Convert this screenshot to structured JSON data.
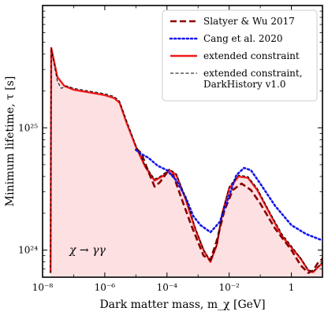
{
  "chart_data": {
    "type": "line",
    "title": "",
    "xlabel": "Dark matter mass, m_χ [GeV]",
    "ylabel": "Minimum lifetime, τ [s]",
    "xscale": "log",
    "yscale": "log",
    "xlim": [
      1e-08,
      10
    ],
    "ylim": [
      6e+23,
      1e+26
    ],
    "legend_position": "top-right",
    "annotation": "χ → γγ",
    "xticks": [
      {
        "value": 1e-08,
        "label": "10⁻⁸"
      },
      {
        "value": 1e-06,
        "label": "10⁻⁶"
      },
      {
        "value": 0.0001,
        "label": "10⁻⁴"
      },
      {
        "value": 0.01,
        "label": "10⁻²"
      },
      {
        "value": 1,
        "label": "1"
      }
    ],
    "yticks": [
      {
        "value": 1e+24,
        "label": "10²⁴"
      },
      {
        "value": 1e+25,
        "label": "10²⁵"
      }
    ],
    "series": [
      {
        "name": "Slatyer & Wu 2017",
        "color": "#8b0000",
        "style": "dashed",
        "points": [
          [
            1e-05,
            6.8e+24
          ],
          [
            1.5e-05,
            6.2e+24
          ],
          [
            2.5e-05,
            4.4e+24
          ],
          [
            4e-05,
            3.3e+24
          ],
          [
            6e-05,
            3.6e+24
          ],
          [
            0.0001,
            4.3e+24
          ],
          [
            0.00016,
            4.1e+24
          ],
          [
            0.0003,
            2.6e+24
          ],
          [
            0.0006,
            1.6e+24
          ],
          [
            0.0015,
            9e+23
          ],
          [
            0.0025,
            8.3e+23
          ],
          [
            0.004,
            1.2e+24
          ],
          [
            0.007,
            2.1e+24
          ],
          [
            0.013,
            3.1e+24
          ],
          [
            0.025,
            3.5e+24
          ],
          [
            0.05,
            3.1e+24
          ],
          [
            0.1,
            2.4e+24
          ],
          [
            0.3,
            1.5e+24
          ],
          [
            1,
            1e+24
          ],
          [
            2,
            7.5e+23
          ],
          [
            3.5,
            6.5e+23
          ],
          [
            5,
            6.8e+23
          ],
          [
            7,
            7.8e+23
          ],
          [
            10,
            8.5e+23
          ]
        ]
      },
      {
        "name": "Cang et al. 2020",
        "color": "#1515ee",
        "style": "dotted",
        "points": [
          [
            1e-05,
            6.6e+24
          ],
          [
            1.5e-05,
            6.1e+24
          ],
          [
            2.5e-05,
            5.7e+24
          ],
          [
            5e-05,
            4.9e+24
          ],
          [
            0.0001,
            4.5e+24
          ],
          [
            0.0002,
            3.7e+24
          ],
          [
            0.0004,
            2.7e+24
          ],
          [
            0.0007,
            1.9e+24
          ],
          [
            0.0012,
            1.6e+24
          ],
          [
            0.0025,
            1.4e+24
          ],
          [
            0.005,
            1.7e+24
          ],
          [
            0.01,
            2.8e+24
          ],
          [
            0.017,
            4.1e+24
          ],
          [
            0.03,
            4.7e+24
          ],
          [
            0.05,
            4.5e+24
          ],
          [
            0.1,
            3.5e+24
          ],
          [
            0.3,
            2.3e+24
          ],
          [
            1,
            1.6e+24
          ],
          [
            3,
            1.35e+24
          ],
          [
            10,
            1.2e+24
          ]
        ]
      },
      {
        "name": "extended constraint",
        "color": "#ee1a1a",
        "style": "solid",
        "points": [
          [
            1.8e-08,
            6.5e+23
          ],
          [
            1.9e-08,
            4.5e+25
          ],
          [
            2.4e-08,
            3.4e+25
          ],
          [
            3e-08,
            2.6e+25
          ],
          [
            5e-08,
            2.2e+25
          ],
          [
            1e-07,
            2.05e+25
          ],
          [
            3e-07,
            1.95e+25
          ],
          [
            1e-06,
            1.85e+25
          ],
          [
            2e-06,
            1.75e+25
          ],
          [
            3e-06,
            1.6e+25
          ],
          [
            5e-06,
            1.1e+25
          ],
          [
            1e-05,
            7e+24
          ],
          [
            2e-05,
            4.8e+24
          ],
          [
            4e-05,
            3.7e+24
          ],
          [
            7e-05,
            4e+24
          ],
          [
            0.00012,
            4.5e+24
          ],
          [
            0.0002,
            4.1e+24
          ],
          [
            0.0004,
            2.6e+24
          ],
          [
            0.0008,
            1.5e+24
          ],
          [
            0.0015,
            1e+24
          ],
          [
            0.0025,
            8e+23
          ],
          [
            0.004,
            1.1e+24
          ],
          [
            0.006,
            2e+24
          ],
          [
            0.01,
            3.2e+24
          ],
          [
            0.02,
            4e+24
          ],
          [
            0.04,
            3.9e+24
          ],
          [
            0.08,
            3.1e+24
          ],
          [
            0.2,
            2e+24
          ],
          [
            0.5,
            1.3e+24
          ],
          [
            1,
            1.05e+24
          ],
          [
            2,
            8.5e+23
          ],
          [
            3.5,
            6.8e+23
          ],
          [
            5,
            6.6e+23
          ],
          [
            7,
            7.2e+23
          ],
          [
            10,
            7.8e+23
          ]
        ]
      },
      {
        "name": "extended constraint,\nDarkHistory v1.0",
        "color": "#000000",
        "style": "dashed-thin",
        "points": [
          [
            1.8e-08,
            6.5e+23
          ],
          [
            1.9e-08,
            4.5e+25
          ],
          [
            2.4e-08,
            3.2e+25
          ],
          [
            3e-08,
            2.4e+25
          ],
          [
            4e-08,
            2.1e+25
          ],
          [
            6e-08,
            2.2e+25
          ],
          [
            1e-07,
            2.1e+25
          ],
          [
            3e-07,
            2e+25
          ],
          [
            1e-06,
            1.9e+25
          ],
          [
            2e-06,
            1.8e+25
          ],
          [
            3e-06,
            1.65e+25
          ],
          [
            5e-06,
            1.15e+25
          ],
          [
            1e-05,
            7.2e+24
          ],
          [
            2e-05,
            4.9e+24
          ],
          [
            4e-05,
            3.8e+24
          ],
          [
            7e-05,
            4.1e+24
          ],
          [
            0.00012,
            4.6e+24
          ],
          [
            0.0002,
            4.2e+24
          ],
          [
            0.0004,
            2.7e+24
          ],
          [
            0.0008,
            1.55e+24
          ],
          [
            0.0015,
            1e+24
          ],
          [
            0.0025,
            8.2e+23
          ],
          [
            0.004,
            1.1e+24
          ],
          [
            0.006,
            2e+24
          ],
          [
            0.01,
            3.3e+24
          ],
          [
            0.02,
            4.1e+24
          ],
          [
            0.04,
            4e+24
          ],
          [
            0.08,
            3.2e+24
          ],
          [
            0.2,
            2.05e+24
          ],
          [
            0.5,
            1.35e+24
          ],
          [
            1,
            1.08e+24
          ],
          [
            2,
            8.6e+23
          ],
          [
            3.5,
            6.9e+23
          ],
          [
            5,
            6.7e+23
          ],
          [
            7,
            7.3e+23
          ],
          [
            10,
            8e+23
          ]
        ]
      }
    ],
    "fill": {
      "color": "#fde0e2",
      "description": "shaded excluded region below extended constraint"
    }
  }
}
